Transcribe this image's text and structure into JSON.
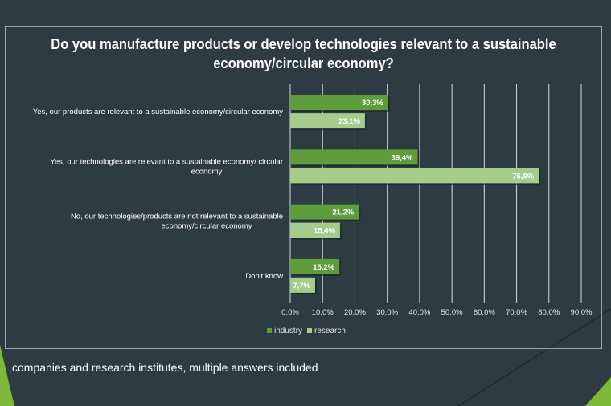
{
  "chart_data": {
    "type": "bar",
    "orientation": "horizontal",
    "title": "Do you manufacture products or develop technologies relevant to a sustainable economy/circular economy?",
    "categories": [
      "Yes, our products are relevant to a sustainable economy/circular economy",
      "Yes, our technologies are relevant to a sustainable economy/ circular economy",
      "No, our technologies/products are not relevant to a sustainable economy/circular economy",
      "Don't know"
    ],
    "series": [
      {
        "name": "industry",
        "color": "#5e9c3c",
        "values": [
          30.3,
          39.4,
          21.2,
          15.2
        ],
        "labels": [
          "30,3%",
          "39,4%",
          "21,2%",
          "15,2%"
        ]
      },
      {
        "name": "research",
        "color": "#a5cc8b",
        "values": [
          23.1,
          76.9,
          15.4,
          7.7
        ],
        "labels": [
          "23,1%",
          "76,9%",
          "15,4%",
          "7,7%"
        ]
      }
    ],
    "xlim": [
      0,
      90
    ],
    "xticks": [
      "0,0%",
      "10,0%",
      "20,0%",
      "30,0%",
      "40,0%",
      "50,0%",
      "60,0%",
      "70,0%",
      "80,0%",
      "90,0%"
    ],
    "grid": true,
    "legend_position": "bottom"
  },
  "footnote": "companies and research institutes, multiple answers included",
  "colors": {
    "background": "#2d3b43",
    "accent": "#7db83a"
  }
}
